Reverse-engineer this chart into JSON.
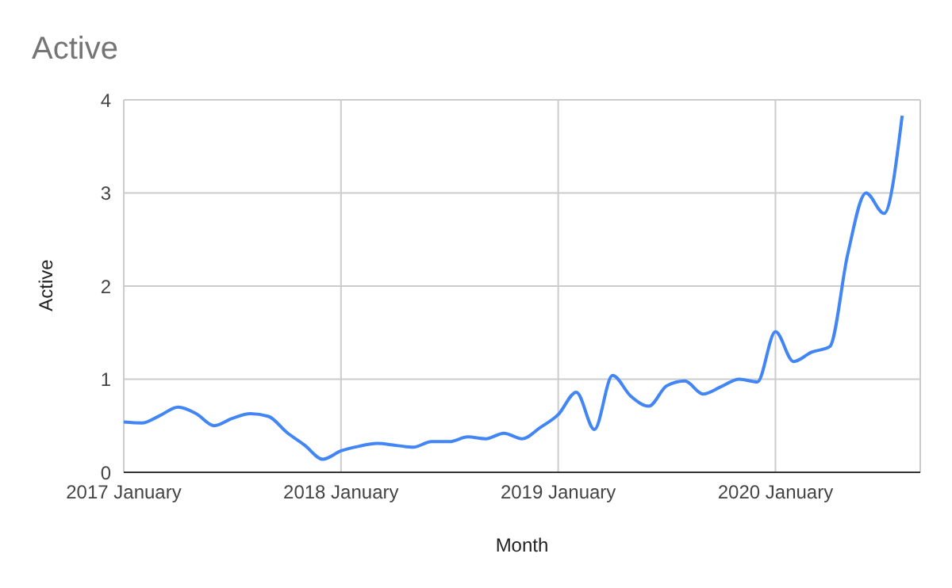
{
  "chart_data": {
    "type": "line",
    "title": "Active",
    "xlabel": "Month",
    "ylabel": "Active",
    "x": [
      "2017-01",
      "2017-02",
      "2017-03",
      "2017-04",
      "2017-05",
      "2017-06",
      "2017-07",
      "2017-08",
      "2017-09",
      "2017-10",
      "2017-11",
      "2017-12",
      "2018-01",
      "2018-02",
      "2018-03",
      "2018-04",
      "2018-05",
      "2018-06",
      "2018-07",
      "2018-08",
      "2018-09",
      "2018-10",
      "2018-11",
      "2018-12",
      "2019-01",
      "2019-02",
      "2019-03",
      "2019-04",
      "2019-05",
      "2019-06",
      "2019-07",
      "2019-08",
      "2019-09",
      "2019-10",
      "2019-11",
      "2019-12",
      "2020-01",
      "2020-02",
      "2020-03",
      "2020-04",
      "2020-05",
      "2020-06",
      "2020-07",
      "2020-08"
    ],
    "series": [
      {
        "color": "#4285f4",
        "values": [
          0.54,
          0.53,
          0.61,
          0.7,
          0.63,
          0.5,
          0.58,
          0.63,
          0.6,
          0.43,
          0.29,
          0.14,
          0.23,
          0.28,
          0.31,
          0.29,
          0.27,
          0.33,
          0.33,
          0.38,
          0.36,
          0.42,
          0.36,
          0.48,
          0.62,
          0.86,
          0.46,
          1.04,
          0.82,
          0.71,
          0.93,
          0.98,
          0.84,
          0.92,
          1.0,
          0.97,
          1.51,
          1.19,
          1.29,
          1.35,
          2.35,
          3.0,
          2.78,
          3.83
        ]
      }
    ],
    "xlim": [
      "2017-01",
      "2020-09"
    ],
    "xticks": [
      {
        "value": "2017-01",
        "label": "2017 January"
      },
      {
        "value": "2018-01",
        "label": "2018 January"
      },
      {
        "value": "2019-01",
        "label": "2019 January"
      },
      {
        "value": "2020-01",
        "label": "2020 January"
      }
    ],
    "ylim": [
      0,
      4
    ],
    "yticks": [
      0,
      1,
      2,
      3,
      4
    ],
    "grid": true,
    "line_style": "solid",
    "marker": "none"
  }
}
